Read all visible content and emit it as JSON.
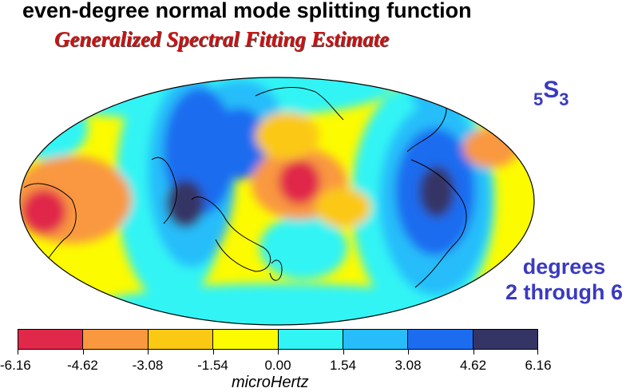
{
  "title": "even-degree normal mode splitting function",
  "subtitle": "Generalized Spectral Fitting Estimate",
  "mode": {
    "prefix": "5",
    "letter": "S",
    "suffix": "3"
  },
  "degree_range": {
    "line1": "degrees",
    "line2": "2 through 6"
  },
  "colorbar": {
    "unit": "microHertz",
    "tick_labels": [
      "-6.16",
      "-4.62",
      "-3.08",
      "-1.54",
      "0.00",
      "1.54",
      "3.08",
      "4.62",
      "6.16"
    ],
    "colors": [
      "#e0284a",
      "#f9983f",
      "#fbc814",
      "#fcfb00",
      "#31f4f4",
      "#26bdfa",
      "#1c6cf0",
      "#343465"
    ]
  }
}
